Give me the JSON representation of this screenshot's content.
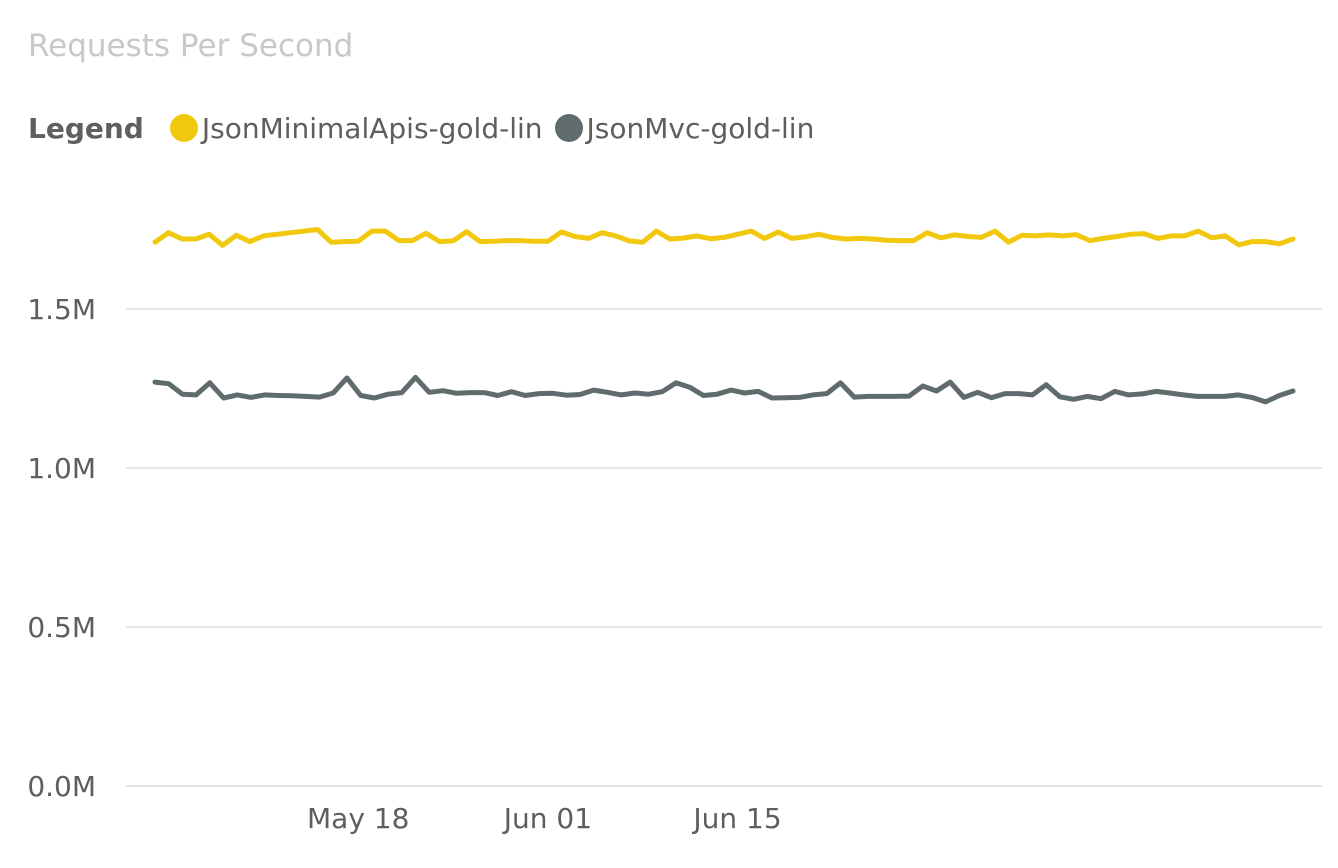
{
  "chart_data": {
    "type": "line",
    "title": "Requests Per Second",
    "legend_label": "Legend",
    "legend_position": "top-left",
    "grid": true,
    "xlabel": "",
    "ylabel": "",
    "ylim": [
      0,
      2000000
    ],
    "y_ticks": [
      {
        "value": 0,
        "label": "0.0M"
      },
      {
        "value": 500000,
        "label": "0.5M"
      },
      {
        "value": 1000000,
        "label": "1.0M"
      },
      {
        "value": 1500000,
        "label": "1.5M"
      }
    ],
    "x_start": "2022-05-03",
    "x_ticks": [
      {
        "date": "2022-05-18",
        "label": "May 18"
      },
      {
        "date": "2022-06-01",
        "label": "Jun 01"
      },
      {
        "date": "2022-06-15",
        "label": "Jun 15"
      }
    ],
    "series": [
      {
        "name": "JsonMinimalApis-gold-lin",
        "color": "#F2C80F",
        "values": [
          1710000,
          1740000,
          1720000,
          1720000,
          1735000,
          1700000,
          1732000,
          1712000,
          1730000,
          1735000,
          1740000,
          1745000,
          1750000,
          1710000,
          1712000,
          1713000,
          1745000,
          1745000,
          1715000,
          1715000,
          1738000,
          1712000,
          1714000,
          1743000,
          1712000,
          1713000,
          1715000,
          1715000,
          1713000,
          1713000,
          1742000,
          1728000,
          1722000,
          1740000,
          1730000,
          1714000,
          1710000,
          1745000,
          1720000,
          1723000,
          1730000,
          1721000,
          1725000,
          1735000,
          1745000,
          1722000,
          1742000,
          1722000,
          1727000,
          1735000,
          1725000,
          1720000,
          1722000,
          1720000,
          1716000,
          1715000,
          1715000,
          1740000,
          1724000,
          1733000,
          1728000,
          1725000,
          1745000,
          1710000,
          1732000,
          1730000,
          1733000,
          1730000,
          1734000,
          1715000,
          1722000,
          1728000,
          1735000,
          1737000,
          1722000,
          1730000,
          1730000,
          1745000,
          1724000,
          1730000,
          1702000,
          1712000,
          1712000,
          1705000,
          1720000
        ]
      },
      {
        "name": "JsonMvc-gold-lin",
        "color": "#5F6B6D",
        "values": [
          1270000,
          1265000,
          1232000,
          1230000,
          1268000,
          1220000,
          1230000,
          1222000,
          1230000,
          1228000,
          1227000,
          1225000,
          1223000,
          1236000,
          1283000,
          1228000,
          1220000,
          1232000,
          1237000,
          1285000,
          1238000,
          1243000,
          1235000,
          1237000,
          1237000,
          1228000,
          1240000,
          1228000,
          1234000,
          1235000,
          1229000,
          1231000,
          1245000,
          1238000,
          1230000,
          1236000,
          1232000,
          1240000,
          1268000,
          1254000,
          1228000,
          1232000,
          1245000,
          1236000,
          1241000,
          1220000,
          1221000,
          1222000,
          1230000,
          1234000,
          1268000,
          1223000,
          1225000,
          1225000,
          1225000,
          1226000,
          1258000,
          1242000,
          1270000,
          1222000,
          1238000,
          1221000,
          1234000,
          1234000,
          1230000,
          1262000,
          1224000,
          1216000,
          1225000,
          1218000,
          1241000,
          1230000,
          1233000,
          1241000,
          1236000,
          1230000,
          1225000,
          1225000,
          1225000,
          1230000,
          1222000,
          1208000,
          1228000,
          1242000
        ]
      }
    ]
  }
}
